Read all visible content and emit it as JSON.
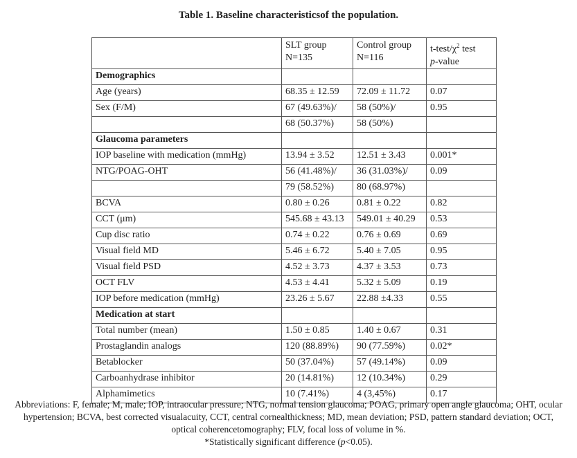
{
  "title": "Table 1. Baseline characteristicsof  the population.",
  "header": {
    "col2_line1": "SLT group",
    "col2_line2": "N=135",
    "col3_line1": "Control group",
    "col3_line2": "N=116",
    "col4_line1_a": "t-test/χ",
    "col4_line1_sup": "2",
    "col4_line1_b": " test",
    "col4_line2_italic": "p",
    "col4_line2_rest": "-value"
  },
  "sections": {
    "demographics": "Demographics",
    "glaucoma": "Glaucoma parameters",
    "medication": "Medication at start"
  },
  "rows": {
    "age": [
      "Age (years)",
      "68.35 ± 12.59",
      "72.09 ± 11.72",
      "0.07"
    ],
    "sex1": [
      "Sex (F/M)",
      "67 (49.63%)/",
      "58 (50%)/",
      "0.95"
    ],
    "sex2": [
      "",
      "68 (50.37%)",
      "58 (50%)",
      ""
    ],
    "iop_base": [
      "IOP baseline with medication (mmHg)",
      "13.94 ± 3.52",
      "12.51 ± 3.43",
      "0.001*"
    ],
    "ntg1": [
      "NTG/POAG-OHT",
      "56 (41.48%)/",
      "36 (31.03%)/",
      "0.09"
    ],
    "ntg2": [
      "",
      "79 (58.52%)",
      "80 (68.97%)",
      ""
    ],
    "bcva": [
      "BCVA",
      "0.80 ± 0.26",
      "0.81 ± 0.22",
      "0.82"
    ],
    "cct": [
      "CCT (μm)",
      "545.68 ± 43.13",
      "549.01 ± 40.29",
      "0.53"
    ],
    "cup": [
      "Cup disc ratio",
      "0.74 ± 0.22",
      "0.76 ± 0.69",
      "0.69"
    ],
    "vfmd": [
      "Visual field MD",
      "5.46 ± 6.72",
      "5.40 ± 7.05",
      "0.95"
    ],
    "vfpsd": [
      "Visual field PSD",
      "4.52 ± 3.73",
      "4.37 ± 3.53",
      "0.73"
    ],
    "octflv": [
      "OCT FLV",
      "4.53 ± 4.41",
      "5.32 ± 5.09",
      "0.19"
    ],
    "iop_before": [
      "IOP before medication (mmHg)",
      "23.26 ± 5.67",
      "22.88 ±4.33",
      "0.55"
    ],
    "total": [
      "Total number  (mean)",
      "1.50 ± 0.85",
      "1.40 ± 0.67",
      "0.31"
    ],
    "prosta": [
      "Prostaglandin analogs",
      "120 (88.89%)",
      "90 (77.59%)",
      "0.02*"
    ],
    "beta": [
      "Betablocker",
      "50 (37.04%)",
      "57 (49.14%)",
      "0.09"
    ],
    "carbo": [
      "Carboanhydrase inhibitor",
      "20 (14.81%)",
      "12 (10.34%)",
      "0.29"
    ],
    "alpha": [
      "Alphamimetics",
      "10 (7.41%)",
      "4 (3,45%)",
      "0.17"
    ]
  },
  "footer": {
    "abbreviations": "Abbreviations: F, female; M, male; IOP, intraocular pressure; NTG, normal tension glaucoma; POAG, primary open angle glaucoma; OHT, ocular hypertension; BCVA, best corrected visualacuity, CCT, central cornealthickness; MD, mean deviation; PSD, pattern standard deviation; OCT, optical coherencetomography; FLV, focal loss of volume in %.",
    "sig_before": "*Statistically significant difference (",
    "sig_p": "p",
    "sig_after": "<0.05)."
  }
}
